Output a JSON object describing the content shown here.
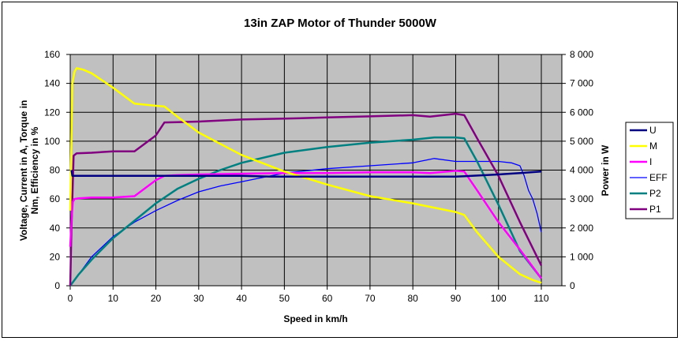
{
  "chart_data": {
    "type": "line",
    "title": "13in ZAP Motor of Thunder 5000W",
    "xlabel": "Speed in km/h",
    "ylabel_line1": "Voltage, Current in A, Torque in",
    "ylabel_line2": "Nm, Efficiency in %",
    "y2label": "Power in W",
    "xlim": [
      0,
      115
    ],
    "ylim": [
      0,
      160
    ],
    "y2lim": [
      0,
      8000
    ],
    "xticks": [
      "0",
      "10",
      "20",
      "30",
      "40",
      "50",
      "60",
      "70",
      "80",
      "90",
      "100",
      "110"
    ],
    "yticks": [
      "0",
      "20",
      "40",
      "60",
      "80",
      "100",
      "120",
      "140",
      "160"
    ],
    "y2ticks": [
      "0",
      "1 000",
      "2 000",
      "3 000",
      "4 000",
      "5 000",
      "6 000",
      "7 000",
      "8 000"
    ],
    "grid": true,
    "legend_position": "right",
    "series": [
      {
        "name": "U",
        "axis": "left",
        "color": "#000080",
        "width": 2.5,
        "x": [
          0.3,
          0.5,
          5,
          15,
          25,
          40,
          47,
          60,
          80,
          90,
          92,
          100,
          105,
          110
        ],
        "y": [
          80,
          76,
          76,
          76,
          76,
          76,
          75.5,
          75.5,
          75.5,
          75.5,
          75.8,
          77,
          78,
          79
        ]
      },
      {
        "name": "M",
        "axis": "left",
        "color": "#ffff00",
        "width": 2.5,
        "x": [
          0,
          0.5,
          1,
          1.5,
          3,
          5,
          10,
          15,
          20,
          22,
          25,
          30,
          40,
          50,
          60,
          70,
          80,
          90,
          92,
          95,
          100,
          105,
          108,
          110
        ],
        "y": [
          52,
          140,
          148,
          150.5,
          149.5,
          147,
          137,
          126,
          124.5,
          124,
          117,
          106,
          90.5,
          79,
          70,
          62,
          57,
          51,
          49,
          37,
          20,
          8,
          4,
          2
        ]
      },
      {
        "name": "I",
        "axis": "left",
        "color": "#ff00ff",
        "width": 2.5,
        "x": [
          0,
          0.3,
          0.6,
          1,
          2,
          5,
          10,
          15,
          20,
          22,
          25,
          30,
          40,
          50,
          60,
          70,
          80,
          84,
          90,
          92,
          95,
          100,
          105,
          110
        ],
        "y": [
          27,
          45,
          58,
          60,
          60.5,
          61,
          61,
          62,
          73,
          76,
          76.5,
          77,
          77.5,
          78,
          78,
          78.5,
          78.5,
          78,
          79.5,
          79,
          66,
          44,
          25,
          5
        ]
      },
      {
        "name": "EFF",
        "axis": "left",
        "color": "#0000ff",
        "width": 1.3,
        "x": [
          0,
          2,
          5,
          10,
          15,
          20,
          25,
          30,
          35,
          40,
          50,
          60,
          70,
          80,
          85,
          90,
          95,
          100,
          103,
          105,
          106,
          107,
          108,
          109,
          110
        ],
        "y": [
          0,
          8,
          20,
          34,
          44,
          52,
          59,
          65,
          69,
          72,
          78,
          81,
          83,
          85,
          88,
          86,
          86,
          86,
          85,
          83,
          76,
          66,
          60,
          50,
          37
        ]
      },
      {
        "name": "P2",
        "axis": "right",
        "color": "#008080",
        "width": 2.5,
        "x": [
          0,
          2,
          5,
          10,
          15,
          20,
          25,
          30,
          35,
          40,
          50,
          60,
          70,
          80,
          85,
          90,
          92,
          95,
          100,
          105,
          110
        ],
        "y": [
          0,
          400,
          900,
          1650,
          2250,
          2850,
          3350,
          3700,
          4000,
          4250,
          4600,
          4800,
          4950,
          5050,
          5130,
          5130,
          5100,
          4300,
          2800,
          1200,
          250
        ]
      },
      {
        "name": "P1",
        "axis": "right",
        "color": "#800080",
        "width": 2.5,
        "x": [
          0,
          0.3,
          0.8,
          1.5,
          5,
          10,
          15,
          20,
          22,
          25,
          30,
          40,
          50,
          60,
          70,
          80,
          84,
          90,
          92,
          95,
          100,
          105,
          110
        ],
        "y": [
          0,
          2000,
          4500,
          4580,
          4600,
          4650,
          4650,
          5200,
          5650,
          5660,
          5680,
          5750,
          5780,
          5820,
          5860,
          5900,
          5850,
          5950,
          5900,
          5100,
          3800,
          2200,
          700
        ]
      }
    ]
  }
}
